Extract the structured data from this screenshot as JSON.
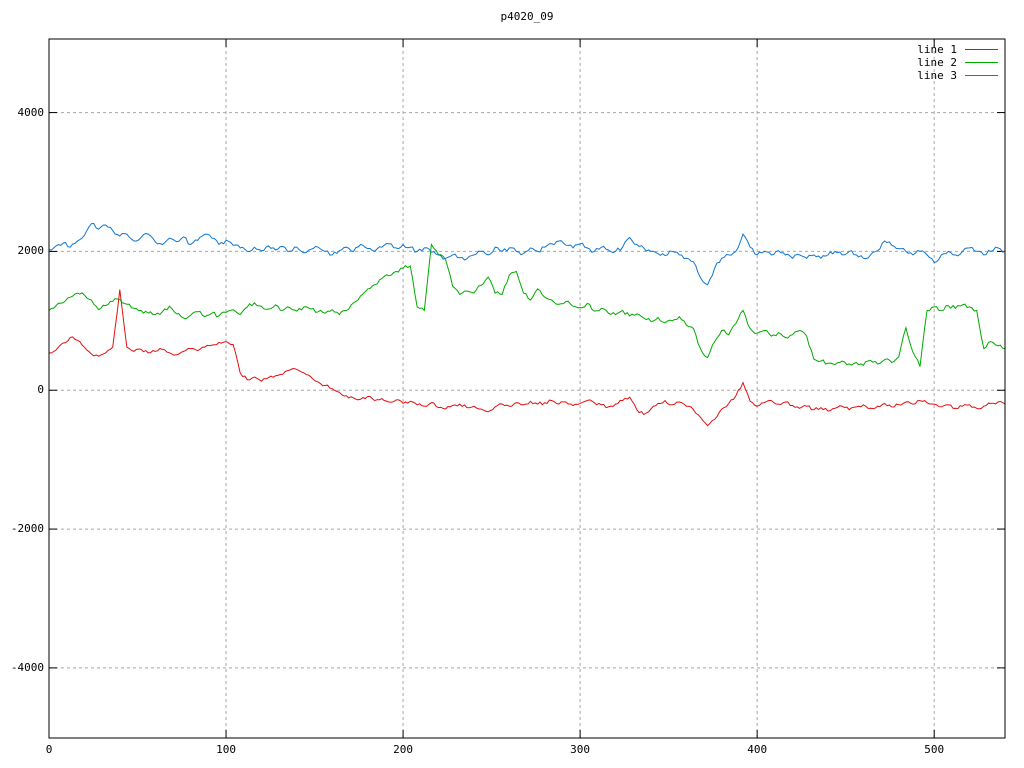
{
  "chart_data": {
    "type": "line",
    "title": "p4020_09",
    "xlabel": "",
    "ylabel": "",
    "xlim": [
      0,
      540
    ],
    "ylim": [
      -5010,
      5060
    ],
    "xticks": [
      0,
      100,
      200,
      300,
      400,
      500
    ],
    "yticks": [
      -4000,
      -2000,
      0,
      2000,
      4000
    ],
    "grid": true,
    "grid_color": "#a8a8a8",
    "axis_color": "#000000",
    "background": "#ffffff",
    "legend_position": "top-right",
    "x_start": 0,
    "x_step": 4,
    "series": [
      {
        "name": "line 1",
        "color": "#e01010",
        "seed": 11,
        "noise": 22,
        "values": [
          540,
          580,
          680,
          760,
          720,
          620,
          520,
          490,
          540,
          620,
          1450,
          620,
          560,
          590,
          540,
          560,
          590,
          540,
          510,
          560,
          600,
          570,
          620,
          650,
          690,
          700,
          660,
          250,
          150,
          190,
          130,
          180,
          210,
          230,
          290,
          300,
          250,
          190,
          120,
          70,
          20,
          -30,
          -80,
          -110,
          -130,
          -90,
          -150,
          -120,
          -170,
          -140,
          -190,
          -160,
          -210,
          -230,
          -180,
          -250,
          -270,
          -220,
          -200,
          -250,
          -230,
          -270,
          -310,
          -240,
          -200,
          -230,
          -180,
          -210,
          -160,
          -200,
          -180,
          -150,
          -200,
          -170,
          -220,
          -190,
          -150,
          -180,
          -210,
          -240,
          -200,
          -150,
          -100,
          -280,
          -350,
          -270,
          -190,
          -150,
          -210,
          -170,
          -230,
          -280,
          -390,
          -510,
          -420,
          -270,
          -190,
          -80,
          110,
          -160,
          -230,
          -180,
          -150,
          -200,
          -170,
          -220,
          -260,
          -230,
          -280,
          -250,
          -300,
          -260,
          -230,
          -280,
          -240,
          -210,
          -260,
          -230,
          -190,
          -240,
          -210,
          -170,
          -200,
          -150,
          -180,
          -200,
          -240,
          -210,
          -260,
          -230,
          -210,
          -260,
          -230,
          -190,
          -170,
          -200
        ]
      },
      {
        "name": "line 2",
        "color": "#00aa00",
        "seed": 22,
        "noise": 28,
        "values": [
          1150,
          1220,
          1260,
          1340,
          1400,
          1370,
          1300,
          1160,
          1220,
          1280,
          1310,
          1240,
          1180,
          1150,
          1110,
          1090,
          1130,
          1210,
          1100,
          1040,
          1080,
          1130,
          1060,
          1110,
          1070,
          1120,
          1160,
          1090,
          1200,
          1260,
          1210,
          1170,
          1230,
          1150,
          1190,
          1140,
          1200,
          1170,
          1130,
          1110,
          1160,
          1090,
          1150,
          1260,
          1360,
          1460,
          1520,
          1610,
          1650,
          1710,
          1760,
          1790,
          1200,
          1150,
          2100,
          1950,
          1880,
          1500,
          1380,
          1430,
          1400,
          1510,
          1630,
          1400,
          1380,
          1660,
          1710,
          1400,
          1300,
          1460,
          1340,
          1300,
          1240,
          1280,
          1210,
          1190,
          1250,
          1140,
          1180,
          1110,
          1090,
          1150,
          1070,
          1100,
          1040,
          990,
          1050,
          970,
          1000,
          1060,
          940,
          890,
          600,
          470,
          700,
          860,
          800,
          960,
          1150,
          890,
          820,
          860,
          780,
          830,
          760,
          800,
          860,
          780,
          450,
          420,
          390,
          370,
          420,
          380,
          400,
          360,
          430,
          380,
          440,
          400,
          480,
          900,
          550,
          340,
          1150,
          1200,
          1150,
          1220,
          1180,
          1230,
          1200,
          1150,
          600,
          700,
          640,
          600
        ]
      },
      {
        "name": "line 3",
        "color": "#0f76d2",
        "seed": 33,
        "noise": 30,
        "values": [
          2030,
          2080,
          2120,
          2060,
          2150,
          2230,
          2400,
          2320,
          2380,
          2300,
          2220,
          2250,
          2150,
          2200,
          2250,
          2140,
          2100,
          2190,
          2140,
          2210,
          2100,
          2160,
          2250,
          2190,
          2100,
          2160,
          2090,
          2050,
          2000,
          2060,
          2010,
          2080,
          2020,
          2070,
          2000,
          2060,
          1980,
          2030,
          2060,
          2000,
          1950,
          2010,
          2060,
          2000,
          2100,
          2040,
          2000,
          2060,
          2110,
          2050,
          2100,
          2060,
          2000,
          2050,
          1990,
          1950,
          1900,
          1950,
          1910,
          1890,
          1950,
          2000,
          1950,
          2060,
          2000,
          2050,
          2000,
          1970,
          2050,
          2000,
          2060,
          2110,
          2150,
          2090,
          2050,
          2110,
          2050,
          2000,
          2060,
          2020,
          2000,
          2060,
          2200,
          2100,
          2050,
          2000,
          1970,
          1940,
          2000,
          1950,
          1900,
          1850,
          1620,
          1520,
          1760,
          1900,
          1950,
          2000,
          2250,
          2060,
          1950,
          2000,
          1950,
          2010,
          1950,
          1900,
          1950,
          1900,
          1950,
          1900,
          1950,
          2000,
          1950,
          2000,
          1950,
          1900,
          1950,
          2010,
          2150,
          2090,
          2040,
          2000,
          1950,
          2000,
          1950,
          1840,
          1950,
          2000,
          1950,
          2000,
          2050,
          2000,
          1950,
          2000,
          2050,
          2000
        ]
      }
    ]
  }
}
